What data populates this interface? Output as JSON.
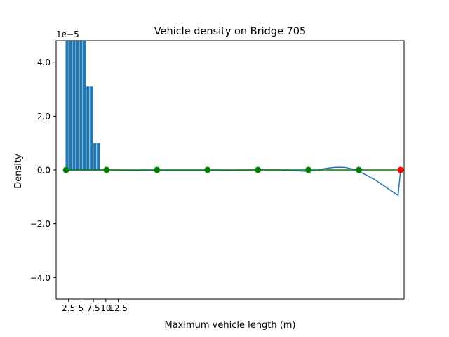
{
  "chart_data": {
    "type": "bar",
    "title": "Vehicle density on Bridge 705",
    "xlabel": "Maximum vehicle length (m)",
    "ylabel": "Density",
    "offset_text": "1e−5",
    "xlim": [
      0,
      70
    ],
    "ylim": [
      -4.8,
      4.8
    ],
    "grid": false,
    "legend": null,
    "xticks": [
      {
        "value": 2.5,
        "label": "2.5"
      },
      {
        "value": 5,
        "label": "5"
      },
      {
        "value": 7.5,
        "label": "7.5"
      },
      {
        "value": 10,
        "label": "10"
      },
      {
        "value": 12.5,
        "label": "12.5"
      }
    ],
    "yticks": [
      {
        "value": 4.0,
        "label": "4.0"
      },
      {
        "value": 2.0,
        "label": "2.0"
      },
      {
        "value": 0.0,
        "label": "0.0"
      },
      {
        "value": -2.0,
        "label": "−2.0"
      },
      {
        "value": -4.0,
        "label": "−4.0"
      }
    ],
    "bars": {
      "color": "#1f77b4",
      "width": 0.6,
      "x": [
        2.2,
        2.9,
        3.6,
        4.3,
        5.0,
        5.7,
        6.4,
        7.1,
        7.8,
        8.5
      ],
      "values": [
        4.8,
        4.8,
        4.8,
        4.8,
        4.8,
        4.8,
        3.1,
        3.1,
        1.0,
        1.0
      ]
    },
    "density_curve": {
      "color": "#1f77b4",
      "x": [
        2,
        10,
        20,
        30,
        40,
        45,
        50,
        52,
        54,
        56,
        58,
        60,
        62,
        64,
        66,
        68,
        68.8,
        69.3
      ],
      "y": [
        0.0,
        0.0,
        -0.02,
        -0.02,
        0.0,
        0.0,
        -0.05,
        -0.03,
        0.05,
        0.1,
        0.1,
        0.02,
        -0.15,
        -0.35,
        -0.6,
        -0.85,
        -0.95,
        0.0
      ]
    },
    "baseline": {
      "color": "#008000",
      "x": [
        2,
        69.3
      ],
      "y": [
        0,
        0
      ]
    },
    "green_points": {
      "color": "#008000",
      "x": [
        2,
        10.15,
        20.3,
        30.45,
        40.6,
        50.75,
        60.9
      ],
      "y": [
        0,
        0,
        0,
        0,
        0,
        0,
        0
      ]
    },
    "red_points": {
      "color": "#ff0000",
      "x": [
        69.3
      ],
      "y": [
        0
      ]
    }
  }
}
